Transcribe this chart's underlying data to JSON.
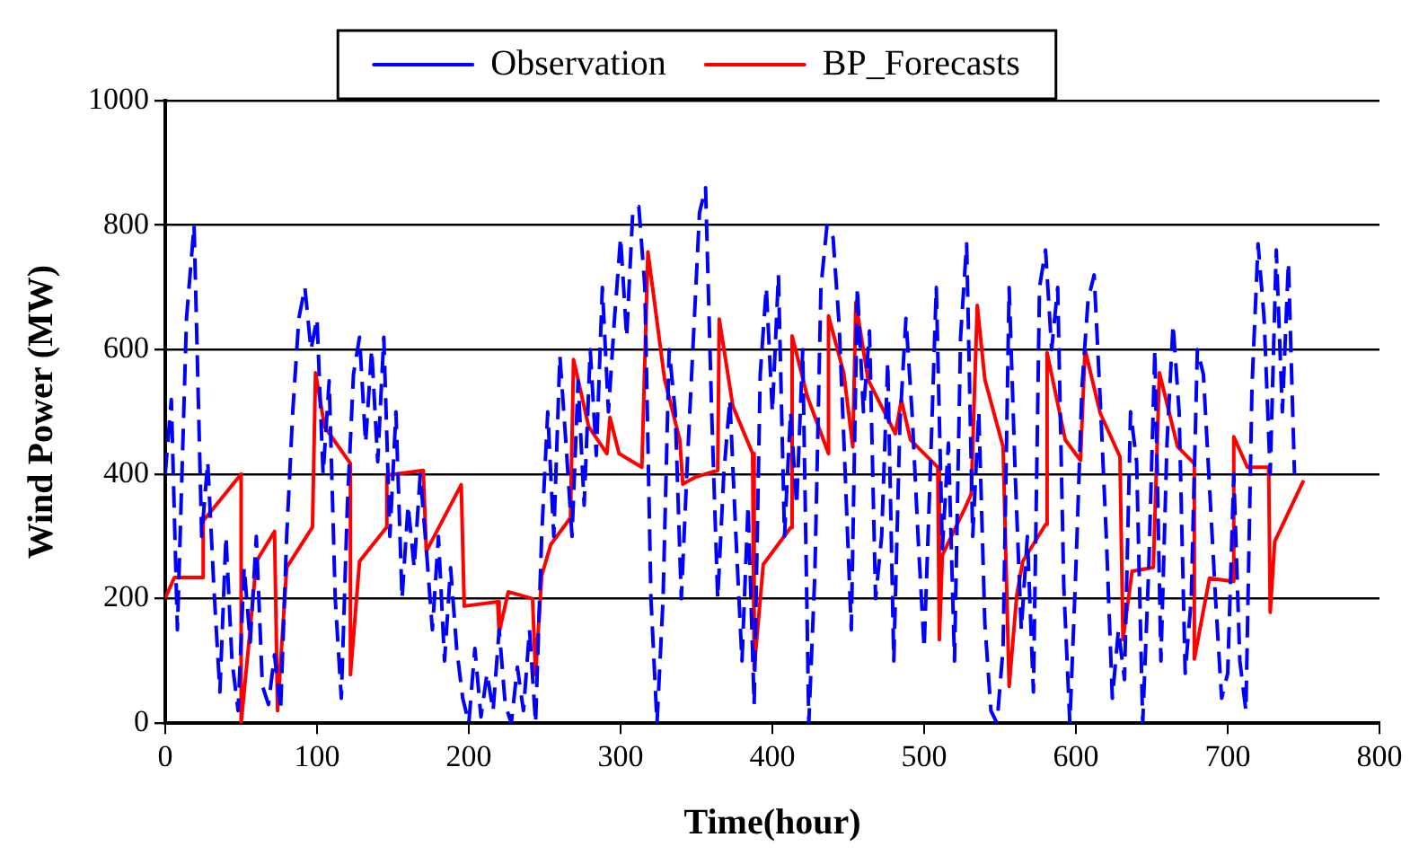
{
  "chart_data": {
    "type": "line",
    "xlabel": "Time(hour)",
    "ylabel": "Wind Power (MW)",
    "xlim": [
      0,
      800
    ],
    "xticks": [
      0,
      100,
      200,
      300,
      400,
      500,
      600,
      700,
      800
    ],
    "ylim": [
      0,
      1000
    ],
    "yticks": [
      0,
      200,
      400,
      600,
      800,
      1000
    ],
    "grid": "y",
    "legend": "top",
    "marker": "none",
    "series": [
      {
        "name": "Observation",
        "color": "#0000ff",
        "line_style": "dashed",
        "x": [
          0,
          4,
          8,
          14,
          19,
          24,
          28,
          32,
          36,
          40,
          44,
          48,
          52,
          56,
          60,
          64,
          68,
          72,
          76,
          80,
          84,
          88,
          92,
          96,
          100,
          104,
          108,
          112,
          116,
          120,
          124,
          128,
          132,
          136,
          140,
          144,
          148,
          152,
          156,
          160,
          164,
          168,
          172,
          176,
          180,
          184,
          188,
          192,
          196,
          200,
          204,
          208,
          212,
          216,
          220,
          224,
          228,
          232,
          236,
          240,
          244,
          248,
          252,
          256,
          260,
          264,
          268,
          272,
          276,
          280,
          284,
          288,
          292,
          296,
          300,
          304,
          308,
          312,
          316,
          320,
          324,
          328,
          332,
          336,
          340,
          344,
          348,
          352,
          356,
          360,
          364,
          368,
          372,
          376,
          380,
          384,
          388,
          392,
          396,
          400,
          404,
          408,
          412,
          416,
          420,
          424,
          428,
          432,
          436,
          440,
          444,
          448,
          452,
          456,
          460,
          464,
          468,
          472,
          476,
          480,
          484,
          488,
          492,
          496,
          500,
          504,
          508,
          512,
          516,
          520,
          524,
          528,
          532,
          536,
          540,
          544,
          548,
          552,
          556,
          560,
          564,
          568,
          572,
          576,
          580,
          584,
          588,
          592,
          596,
          600,
          604,
          608,
          612,
          616,
          620,
          624,
          628,
          632,
          636,
          640,
          644,
          648,
          652,
          656,
          660,
          664,
          668,
          672,
          676,
          680,
          684,
          688,
          692,
          696,
          700,
          704,
          708,
          712,
          716,
          720,
          724,
          728,
          732,
          736,
          740,
          744
        ],
        "values": [
          400,
          520,
          150,
          650,
          800,
          300,
          420,
          220,
          50,
          300,
          100,
          20,
          250,
          130,
          300,
          60,
          30,
          110,
          20,
          300,
          500,
          650,
          700,
          600,
          650,
          400,
          550,
          200,
          40,
          350,
          560,
          620,
          450,
          600,
          420,
          620,
          300,
          500,
          200,
          350,
          250,
          400,
          280,
          150,
          300,
          100,
          250,
          120,
          40,
          0,
          120,
          10,
          80,
          20,
          150,
          30,
          0,
          90,
          20,
          150,
          0,
          300,
          500,
          300,
          590,
          450,
          300,
          550,
          350,
          600,
          430,
          700,
          500,
          650,
          780,
          620,
          820,
          830,
          700,
          200,
          0,
          200,
          600,
          500,
          200,
          420,
          620,
          820,
          860,
          500,
          200,
          400,
          520,
          300,
          100,
          350,
          30,
          560,
          700,
          500,
          720,
          300,
          500,
          350,
          600,
          0,
          240,
          700,
          800,
          780,
          640,
          400,
          150,
          700,
          500,
          630,
          200,
          300,
          580,
          100,
          480,
          650,
          500,
          300,
          120,
          400,
          700,
          280,
          450,
          100,
          620,
          770,
          300,
          500,
          160,
          20,
          0,
          120,
          700,
          400,
          150,
          300,
          50,
          700,
          760,
          600,
          700,
          220,
          0,
          250,
          540,
          680,
          720,
          520,
          300,
          40,
          150,
          70,
          500,
          420,
          0,
          250,
          600,
          100,
          450,
          640,
          500,
          80,
          200,
          600,
          560,
          380,
          200,
          40,
          80,
          400,
          100,
          20,
          540,
          770,
          650,
          400,
          760,
          500,
          740,
          400
        ]
      },
      {
        "name": "BP_Forecasts",
        "color": "#ff0000",
        "line_style": "solid",
        "x": [
          0,
          6,
          25,
          25,
          50,
          50,
          56,
          60,
          72,
          74,
          80,
          97,
          99,
          105,
          122,
          122,
          128,
          146,
          146,
          170,
          172,
          195,
          197,
          219,
          220,
          226,
          242,
          244,
          248,
          254,
          267,
          269,
          279,
          291,
          293,
          299,
          314,
          318,
          329,
          339,
          341,
          349,
          364,
          365,
          374,
          387,
          388,
          394,
          412,
          413,
          423,
          437,
          437,
          447,
          453,
          455,
          463,
          481,
          485,
          491,
          509,
          510,
          512,
          527,
          531,
          535,
          540,
          552,
          556,
          561,
          565,
          580,
          581,
          593,
          603,
          606,
          616,
          629,
          631,
          637,
          651,
          655,
          667,
          678,
          678,
          688,
          703,
          704,
          713,
          727,
          728,
          731,
          750
        ],
        "values": [
          201,
          234,
          234,
          325,
          400,
          0,
          152,
          260,
          308,
          20,
          250,
          315,
          563,
          476,
          417,
          78,
          260,
          315,
          398,
          406,
          276,
          383,
          188,
          195,
          146,
          211,
          200,
          78,
          237,
          287,
          330,
          584,
          476,
          433,
          491,
          433,
          411,
          757,
          552,
          455,
          384,
          395,
          406,
          649,
          509,
          433,
          87,
          255,
          314,
          622,
          525,
          433,
          654,
          563,
          444,
          676,
          552,
          465,
          519,
          455,
          411,
          134,
          270,
          346,
          368,
          671,
          552,
          444,
          59,
          205,
          260,
          319,
          595,
          455,
          422,
          600,
          498,
          428,
          134,
          244,
          250,
          563,
          444,
          417,
          103,
          233,
          228,
          460,
          411,
          411,
          178,
          292,
          390
        ]
      }
    ]
  }
}
